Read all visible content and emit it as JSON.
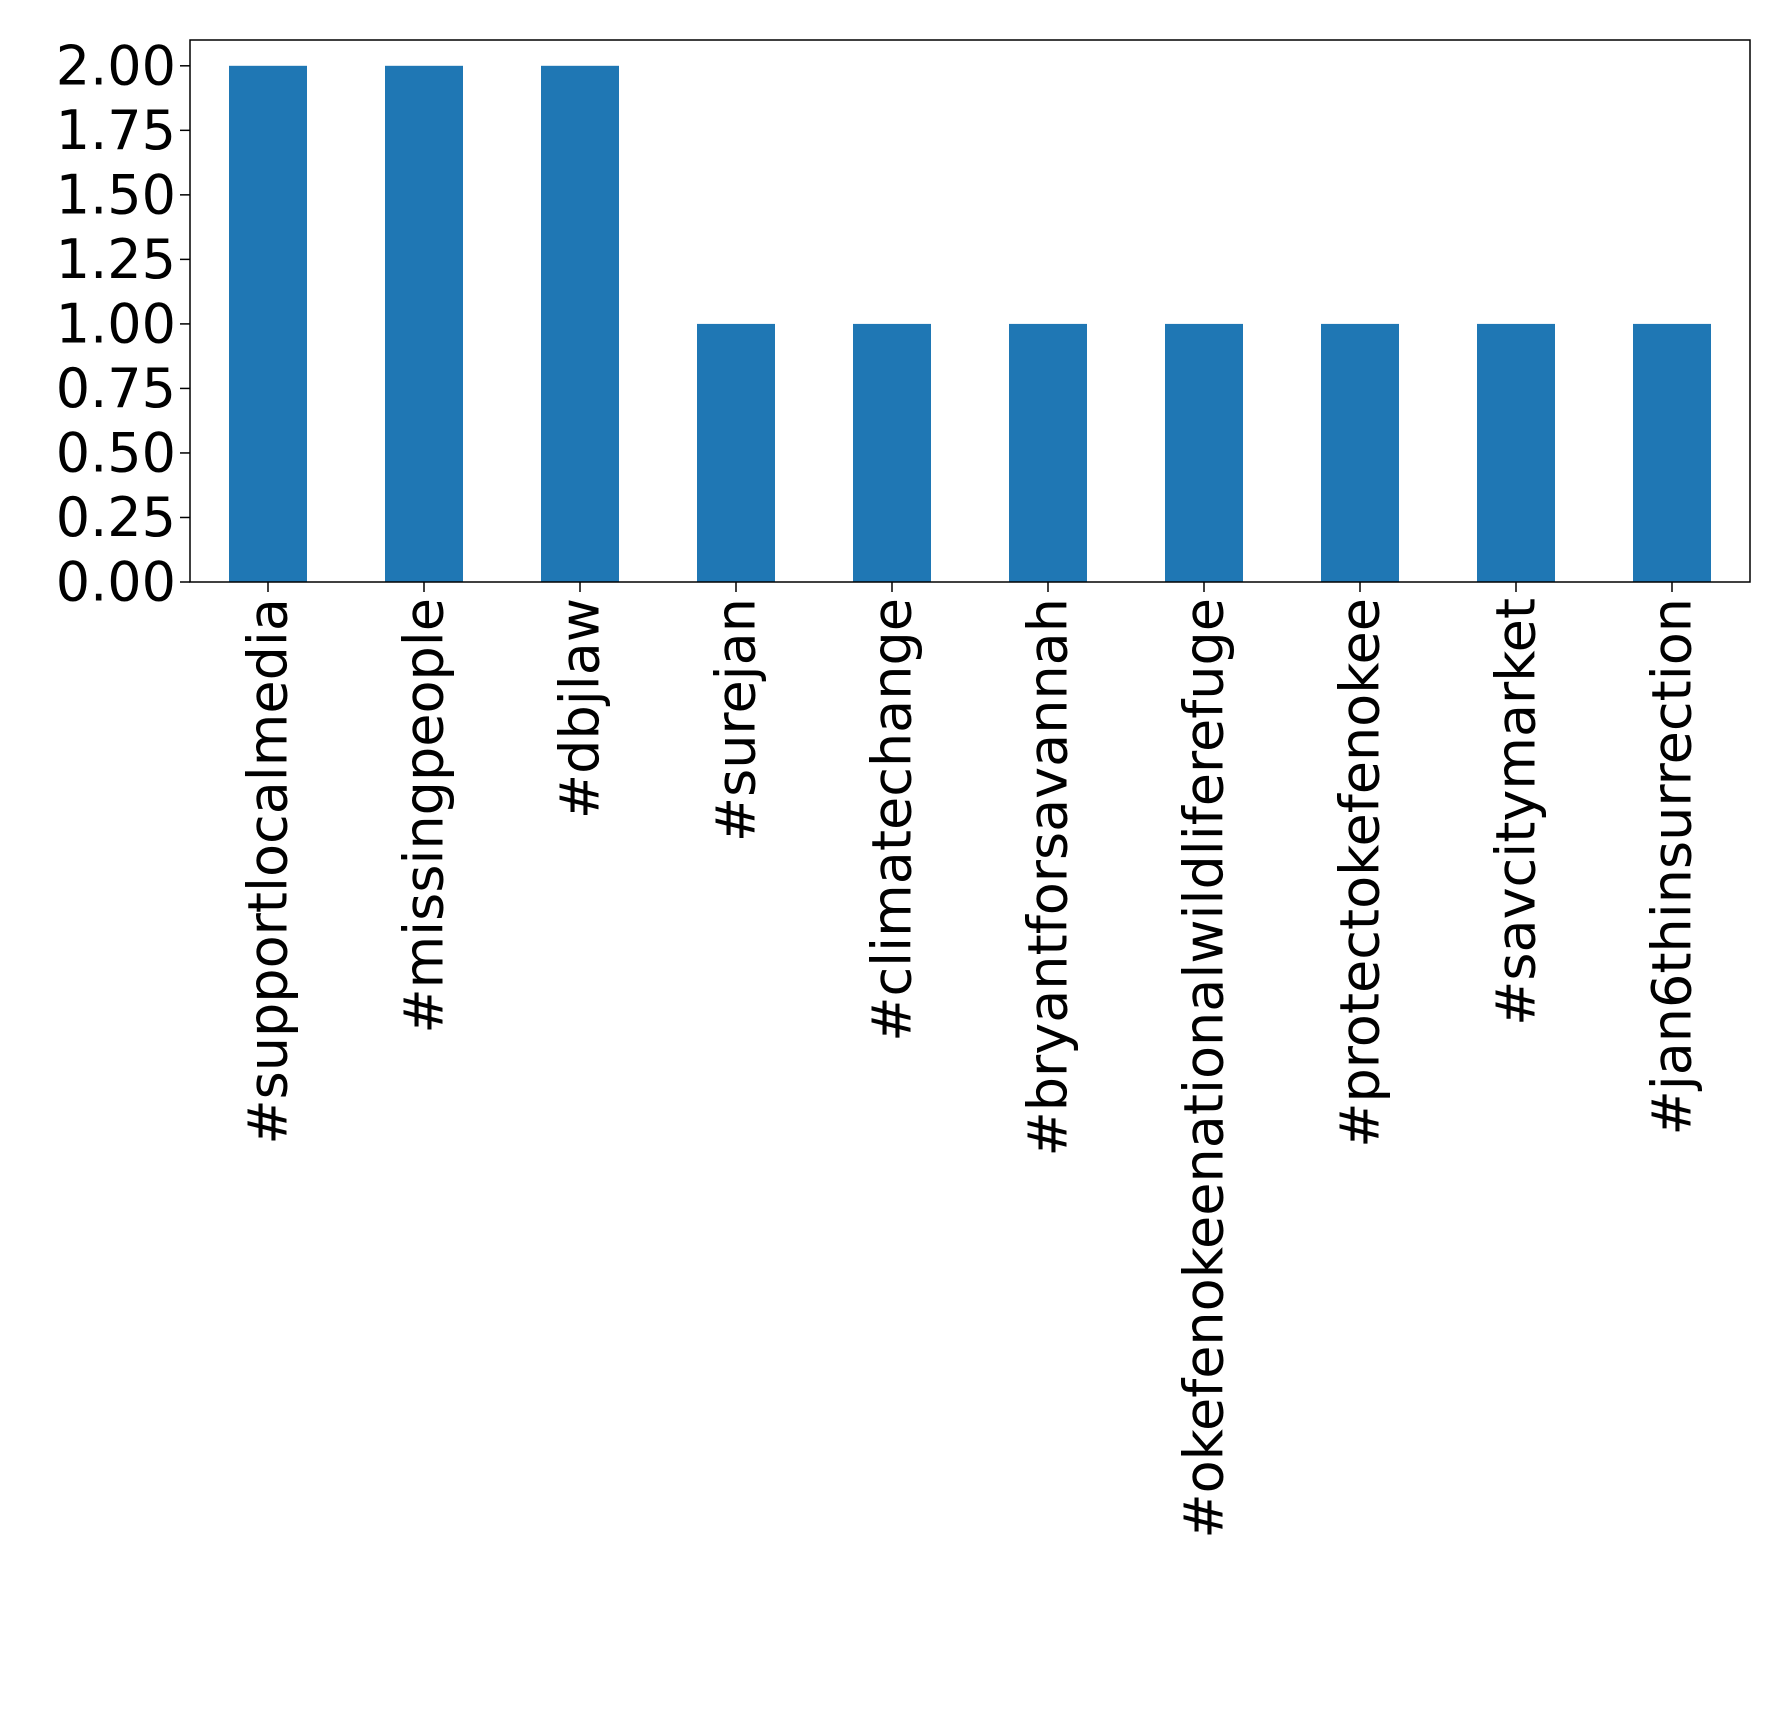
{
  "chart_data": {
    "type": "bar",
    "title": "",
    "xlabel": "",
    "ylabel": "",
    "categories": [
      "#supportlocalmedia",
      "#missingpeople",
      "#dbjlaw",
      "#surejan",
      "#climatechange",
      "#bryantforsavannah",
      "#okefenokeenationalwildliferefuge",
      "#protectokefenokee",
      "#savcitymarket",
      "#jan6thinsurrection"
    ],
    "values": [
      2,
      2,
      2,
      1,
      1,
      1,
      1,
      1,
      1,
      1
    ],
    "ylim": [
      0,
      2.1
    ],
    "yticks": [
      "0.00",
      "0.25",
      "0.50",
      "0.75",
      "1.00",
      "1.25",
      "1.50",
      "1.75",
      "2.00"
    ],
    "grid": false,
    "colors": {
      "bar": "#1f77b4",
      "axis": "#000000",
      "background": "#ffffff"
    }
  }
}
